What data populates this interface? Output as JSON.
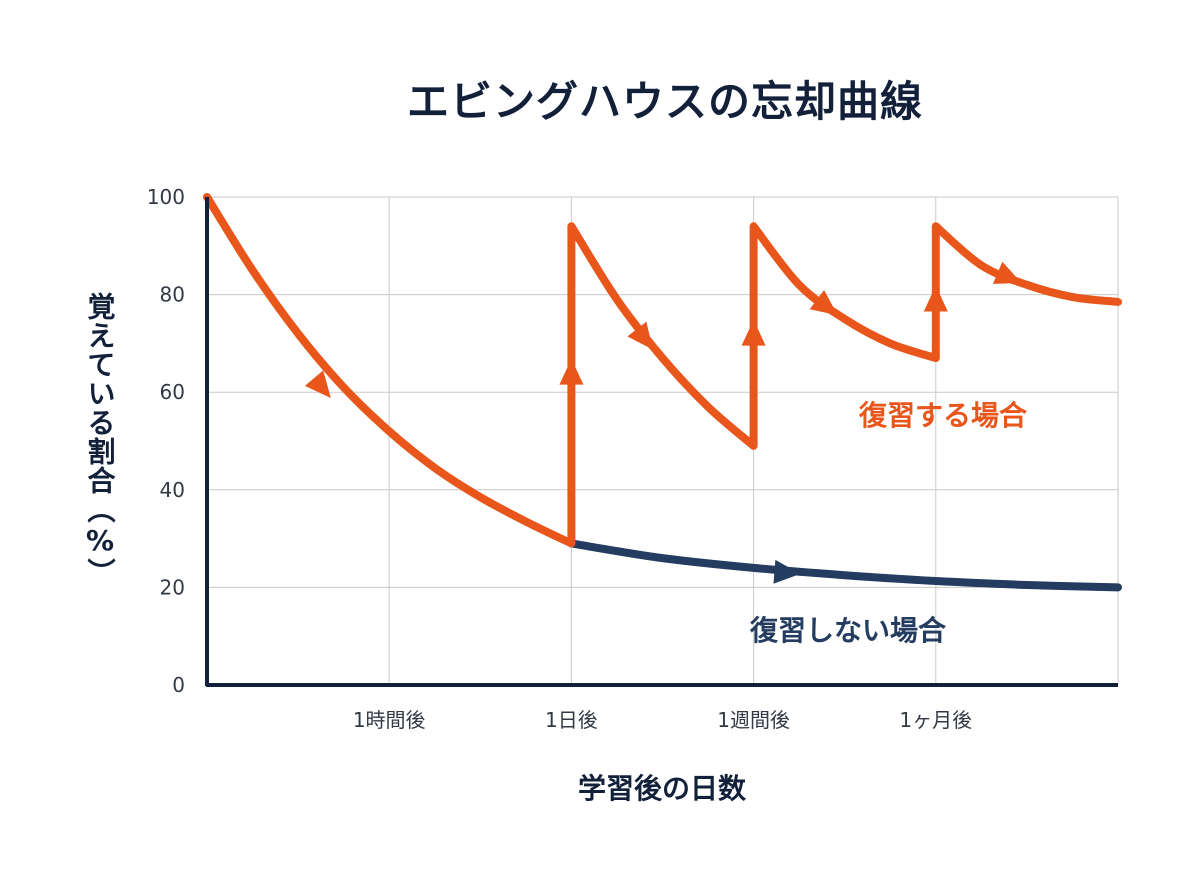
{
  "chart_data": {
    "type": "line",
    "title": "エビングハウスの忘却曲線",
    "xlabel": "学習後の日数",
    "ylabel": "覚えている割合（%）",
    "ylim": [
      0,
      100
    ],
    "yticks": [
      "0",
      "20",
      "40",
      "60",
      "80",
      "100"
    ],
    "xticks": [
      "1時間後",
      "1日後",
      "1週間後",
      "1ヶ月後"
    ],
    "grid": true,
    "colors": {
      "review": "#e8561b",
      "no_review": "#233c5f",
      "axis": "#12203a",
      "grid": "#c9c9c9"
    },
    "series": [
      {
        "name": "復習しない場合",
        "color": "#233c5f",
        "points": [
          [
            2,
            29
          ],
          [
            2.5,
            26
          ],
          [
            3,
            24
          ],
          [
            3.5,
            22.5
          ],
          [
            4,
            21.3
          ],
          [
            4.5,
            20.5
          ],
          [
            5,
            20
          ]
        ]
      },
      {
        "name": "復習する場合",
        "color": "#e8561b",
        "points": [
          [
            0,
            100
          ],
          [
            0.25,
            85
          ],
          [
            0.5,
            72
          ],
          [
            0.75,
            61
          ],
          [
            1,
            52
          ],
          [
            1.25,
            44.5
          ],
          [
            1.5,
            38.5
          ],
          [
            1.75,
            33.5
          ],
          [
            2,
            29
          ],
          [
            2,
            94
          ],
          [
            2.25,
            79
          ],
          [
            2.5,
            67
          ],
          [
            2.75,
            57
          ],
          [
            3,
            49
          ],
          [
            3,
            94
          ],
          [
            3.25,
            82
          ],
          [
            3.5,
            75
          ],
          [
            3.75,
            70
          ],
          [
            4,
            67
          ],
          [
            4,
            94
          ],
          [
            4.25,
            86
          ],
          [
            4.5,
            82
          ],
          [
            4.75,
            79.5
          ],
          [
            5,
            78.5
          ]
        ]
      }
    ]
  }
}
